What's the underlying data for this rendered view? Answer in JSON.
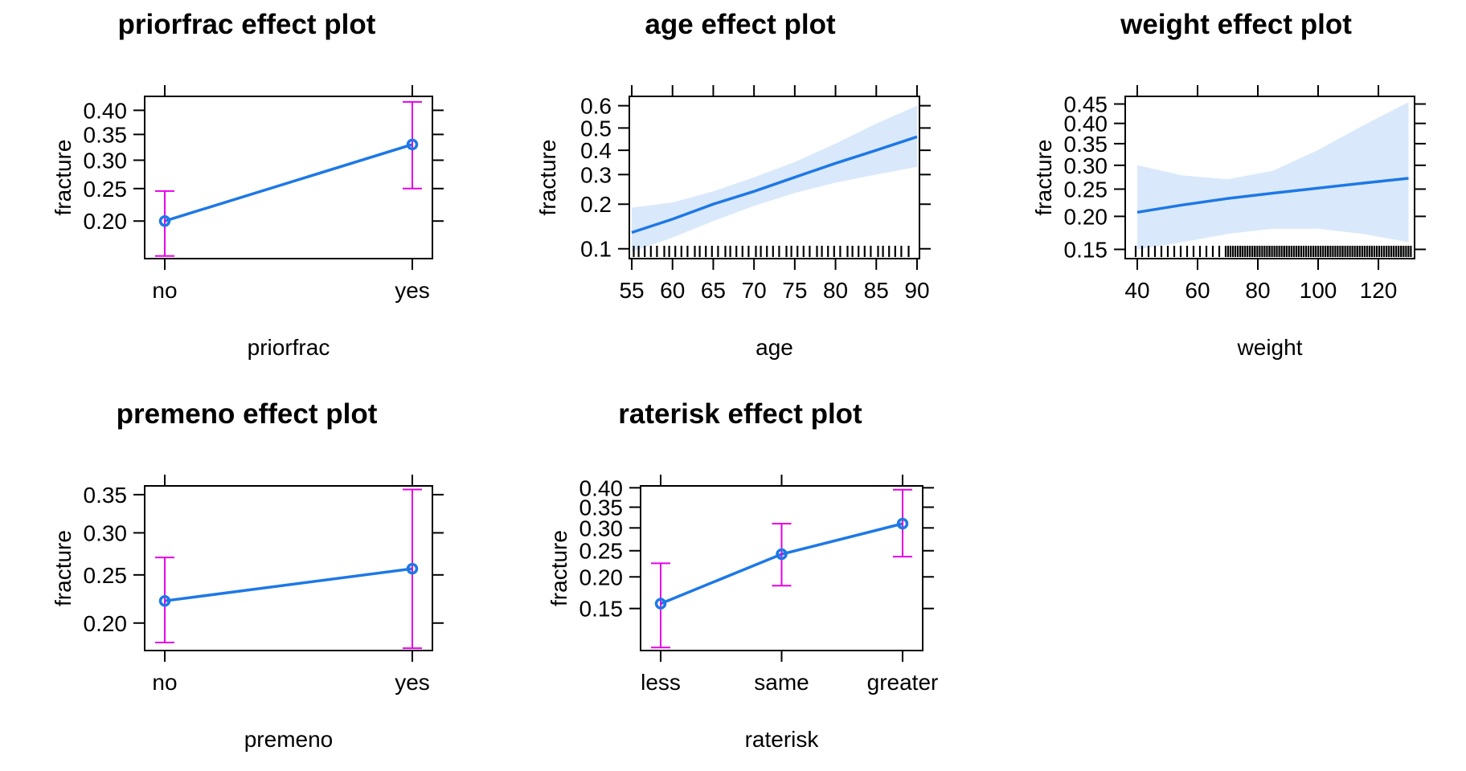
{
  "chart_data": [
    {
      "type": "line",
      "title": "priorfrac effect plot",
      "xlabel": "priorfrac",
      "ylabel": "fracture",
      "xscale": "categorical",
      "yscale": "logit",
      "categories": [
        "no",
        "yes"
      ],
      "values": [
        0.2,
        0.33
      ],
      "lower": [
        0.155,
        0.25
      ],
      "upper": [
        0.246,
        0.418
      ],
      "yticks": [
        "0.20",
        "0.25",
        "0.30",
        "0.35",
        "0.40"
      ],
      "ylim": [
        0.152,
        0.43
      ],
      "line_color": "#1e78e6",
      "ci_color": "#e600e6",
      "rug": false
    },
    {
      "type": "line",
      "title": "age effect plot",
      "xlabel": "age",
      "ylabel": "fracture",
      "xscale": "linear",
      "yscale": "logit",
      "x": [
        55,
        60,
        65,
        70,
        75,
        80,
        85,
        90
      ],
      "values": [
        0.13,
        0.16,
        0.2,
        0.24,
        0.29,
        0.345,
        0.4,
        0.46
      ],
      "lower": [
        0.095,
        0.12,
        0.155,
        0.195,
        0.235,
        0.27,
        0.3,
        0.33
      ],
      "upper": [
        0.19,
        0.205,
        0.24,
        0.29,
        0.35,
        0.43,
        0.52,
        0.6
      ],
      "xticks": [
        "55",
        "60",
        "65",
        "70",
        "75",
        "80",
        "85",
        "90"
      ],
      "yticks": [
        "0.1",
        "0.2",
        "0.3",
        "0.4",
        "0.5",
        "0.6"
      ],
      "xlim": [
        54.7,
        90.3
      ],
      "ylim": [
        0.085,
        0.64
      ],
      "line_color": "#1e78e6",
      "band_color": "#d9e9fb",
      "rug": true
    },
    {
      "type": "line",
      "title": "weight effect plot",
      "xlabel": "weight",
      "ylabel": "fracture",
      "xscale": "linear",
      "yscale": "logit",
      "x": [
        40,
        55,
        70,
        85,
        100,
        115,
        130
      ],
      "values": [
        0.207,
        0.22,
        0.232,
        0.242,
        0.252,
        0.262,
        0.272
      ],
      "lower": [
        0.15,
        0.16,
        0.172,
        0.18,
        0.18,
        0.172,
        0.16
      ],
      "upper": [
        0.3,
        0.278,
        0.27,
        0.288,
        0.335,
        0.395,
        0.455
      ],
      "xticks": [
        "40",
        "60",
        "80",
        "100",
        "120"
      ],
      "yticks": [
        "0.15",
        "0.20",
        "0.25",
        "0.30",
        "0.35",
        "0.40",
        "0.45"
      ],
      "xlim": [
        36,
        132
      ],
      "ylim": [
        0.138,
        0.47
      ],
      "line_color": "#1e78e6",
      "band_color": "#d9e9fb",
      "rug": true
    },
    {
      "type": "line",
      "title": "premeno effect plot",
      "xlabel": "premeno",
      "ylabel": "fracture",
      "xscale": "categorical",
      "yscale": "logit",
      "categories": [
        "no",
        "yes"
      ],
      "values": [
        0.222,
        0.257
      ],
      "lower": [
        0.182,
        0.177
      ],
      "upper": [
        0.27,
        0.357
      ],
      "yticks": [
        "0.20",
        "0.25",
        "0.30",
        "0.35"
      ],
      "ylim": [
        0.175,
        0.362
      ],
      "line_color": "#1e78e6",
      "ci_color": "#e600e6",
      "rug": false
    },
    {
      "type": "line",
      "title": "raterisk effect plot",
      "xlabel": "raterisk",
      "ylabel": "fracture",
      "xscale": "categorical",
      "yscale": "logit",
      "categories": [
        "less",
        "same",
        "greater"
      ],
      "values": [
        0.157,
        0.243,
        0.31
      ],
      "lower": [
        0.103,
        0.185,
        0.238
      ],
      "upper": [
        0.225,
        0.31,
        0.395
      ],
      "yticks": [
        "0.15",
        "0.20",
        "0.25",
        "0.30",
        "0.35",
        "0.40"
      ],
      "ylim": [
        0.1,
        0.405
      ],
      "line_color": "#1e78e6",
      "ci_color": "#e600e6",
      "rug": false
    }
  ]
}
